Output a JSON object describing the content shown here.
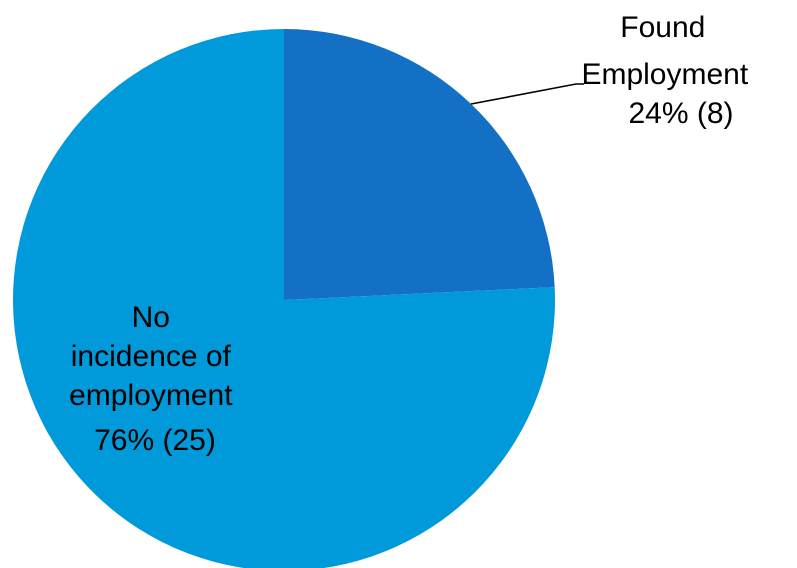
{
  "chart_data": {
    "type": "pie",
    "slices": [
      {
        "label_lines": [
          "Found",
          "Employment",
          "24% (8)"
        ],
        "value": 8,
        "percent": 24,
        "color": "#1470C4"
      },
      {
        "label_lines": [
          "No",
          "incidence of",
          "employment",
          "76% (25)"
        ],
        "value": 25,
        "percent": 76,
        "color": "#009ADA"
      }
    ],
    "start_angle_deg": 0,
    "direction": "clockwise",
    "label_positions": [
      "outside-top-right-with-leader",
      "inside-left"
    ],
    "colors": {
      "leader_line": "#000000",
      "background": "#FFFFFF"
    }
  }
}
